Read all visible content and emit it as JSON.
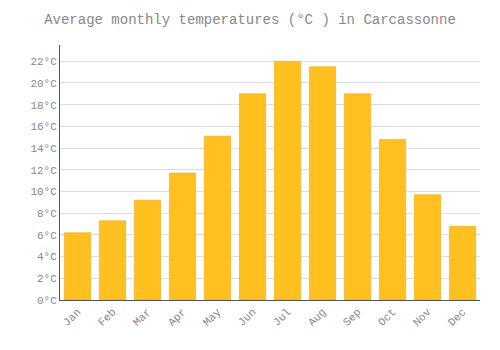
{
  "chart_data": {
    "type": "bar",
    "title": "Average monthly temperatures (°C ) in Carcassonne",
    "categories": [
      "Jan",
      "Feb",
      "Mar",
      "Apr",
      "May",
      "Jun",
      "Jul",
      "Aug",
      "Sep",
      "Oct",
      "Nov",
      "Dec"
    ],
    "values": [
      6.2,
      7.3,
      9.2,
      11.7,
      15.1,
      19.0,
      22.0,
      21.5,
      19.0,
      14.8,
      9.7,
      6.8
    ],
    "color": "#FFC020",
    "ylim": [
      0,
      23.5
    ],
    "yticks": [
      {
        "value": 0,
        "label": "0°C"
      },
      {
        "value": 2,
        "label": "2°C"
      },
      {
        "value": 4,
        "label": "4°C"
      },
      {
        "value": 6,
        "label": "6°C"
      },
      {
        "value": 8,
        "label": "8°C"
      },
      {
        "value": 10,
        "label": "10°C"
      },
      {
        "value": 12,
        "label": "12°C"
      },
      {
        "value": 14,
        "label": "14°C"
      },
      {
        "value": 16,
        "label": "16°C"
      },
      {
        "value": 18,
        "label": "18°C"
      },
      {
        "value": 20,
        "label": "20°C"
      },
      {
        "value": 22,
        "label": "22°C"
      }
    ],
    "grid": true
  }
}
